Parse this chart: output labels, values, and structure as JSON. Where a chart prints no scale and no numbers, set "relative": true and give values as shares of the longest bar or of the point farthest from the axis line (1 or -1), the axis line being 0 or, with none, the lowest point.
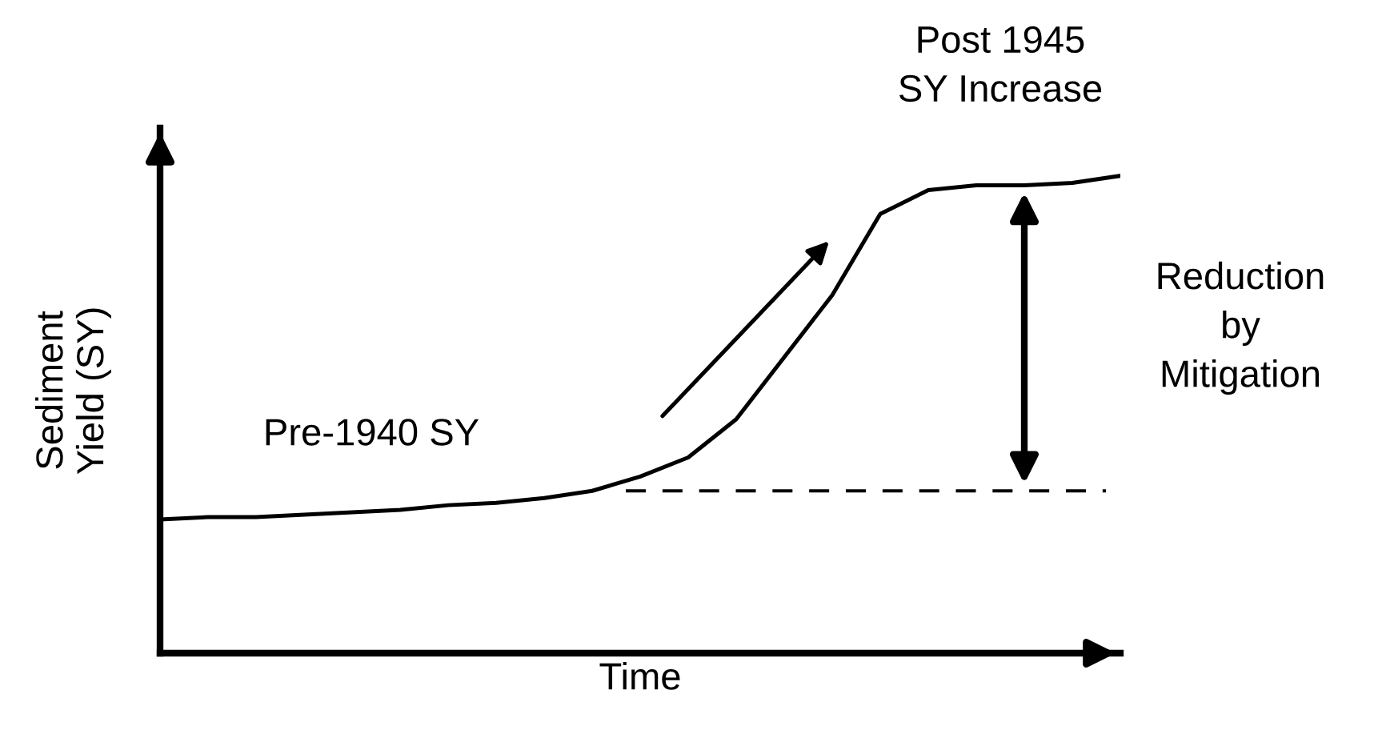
{
  "chart_data": {
    "type": "line",
    "relative": true,
    "xlabel": "Time",
    "ylabel": "Sediment\nYield (SY)",
    "categories": [
      null,
      null,
      null,
      null,
      null,
      null,
      null,
      null,
      null,
      null,
      null,
      null,
      null,
      null,
      null,
      null,
      null,
      null,
      null,
      null,
      null
    ],
    "series": [
      {
        "color": "#000000",
        "values": [
          0.28,
          0.285,
          0.285,
          0.29,
          0.295,
          0.3,
          0.31,
          0.315,
          0.325,
          0.34,
          0.37,
          0.41,
          0.49,
          0.62,
          0.75,
          0.92,
          0.97,
          0.98,
          0.98,
          0.985,
          1.0
        ]
      }
    ],
    "ref_lines": [
      {
        "axis": "y",
        "value": 0.34,
        "color": "#000000",
        "line_style": "dashed"
      }
    ],
    "annotations": [
      "Pre-1940 SY",
      "Post 1945\nSY Increase",
      "Reduction\nby\nMitigation"
    ],
    "marker": "none",
    "line_style": "solid"
  }
}
